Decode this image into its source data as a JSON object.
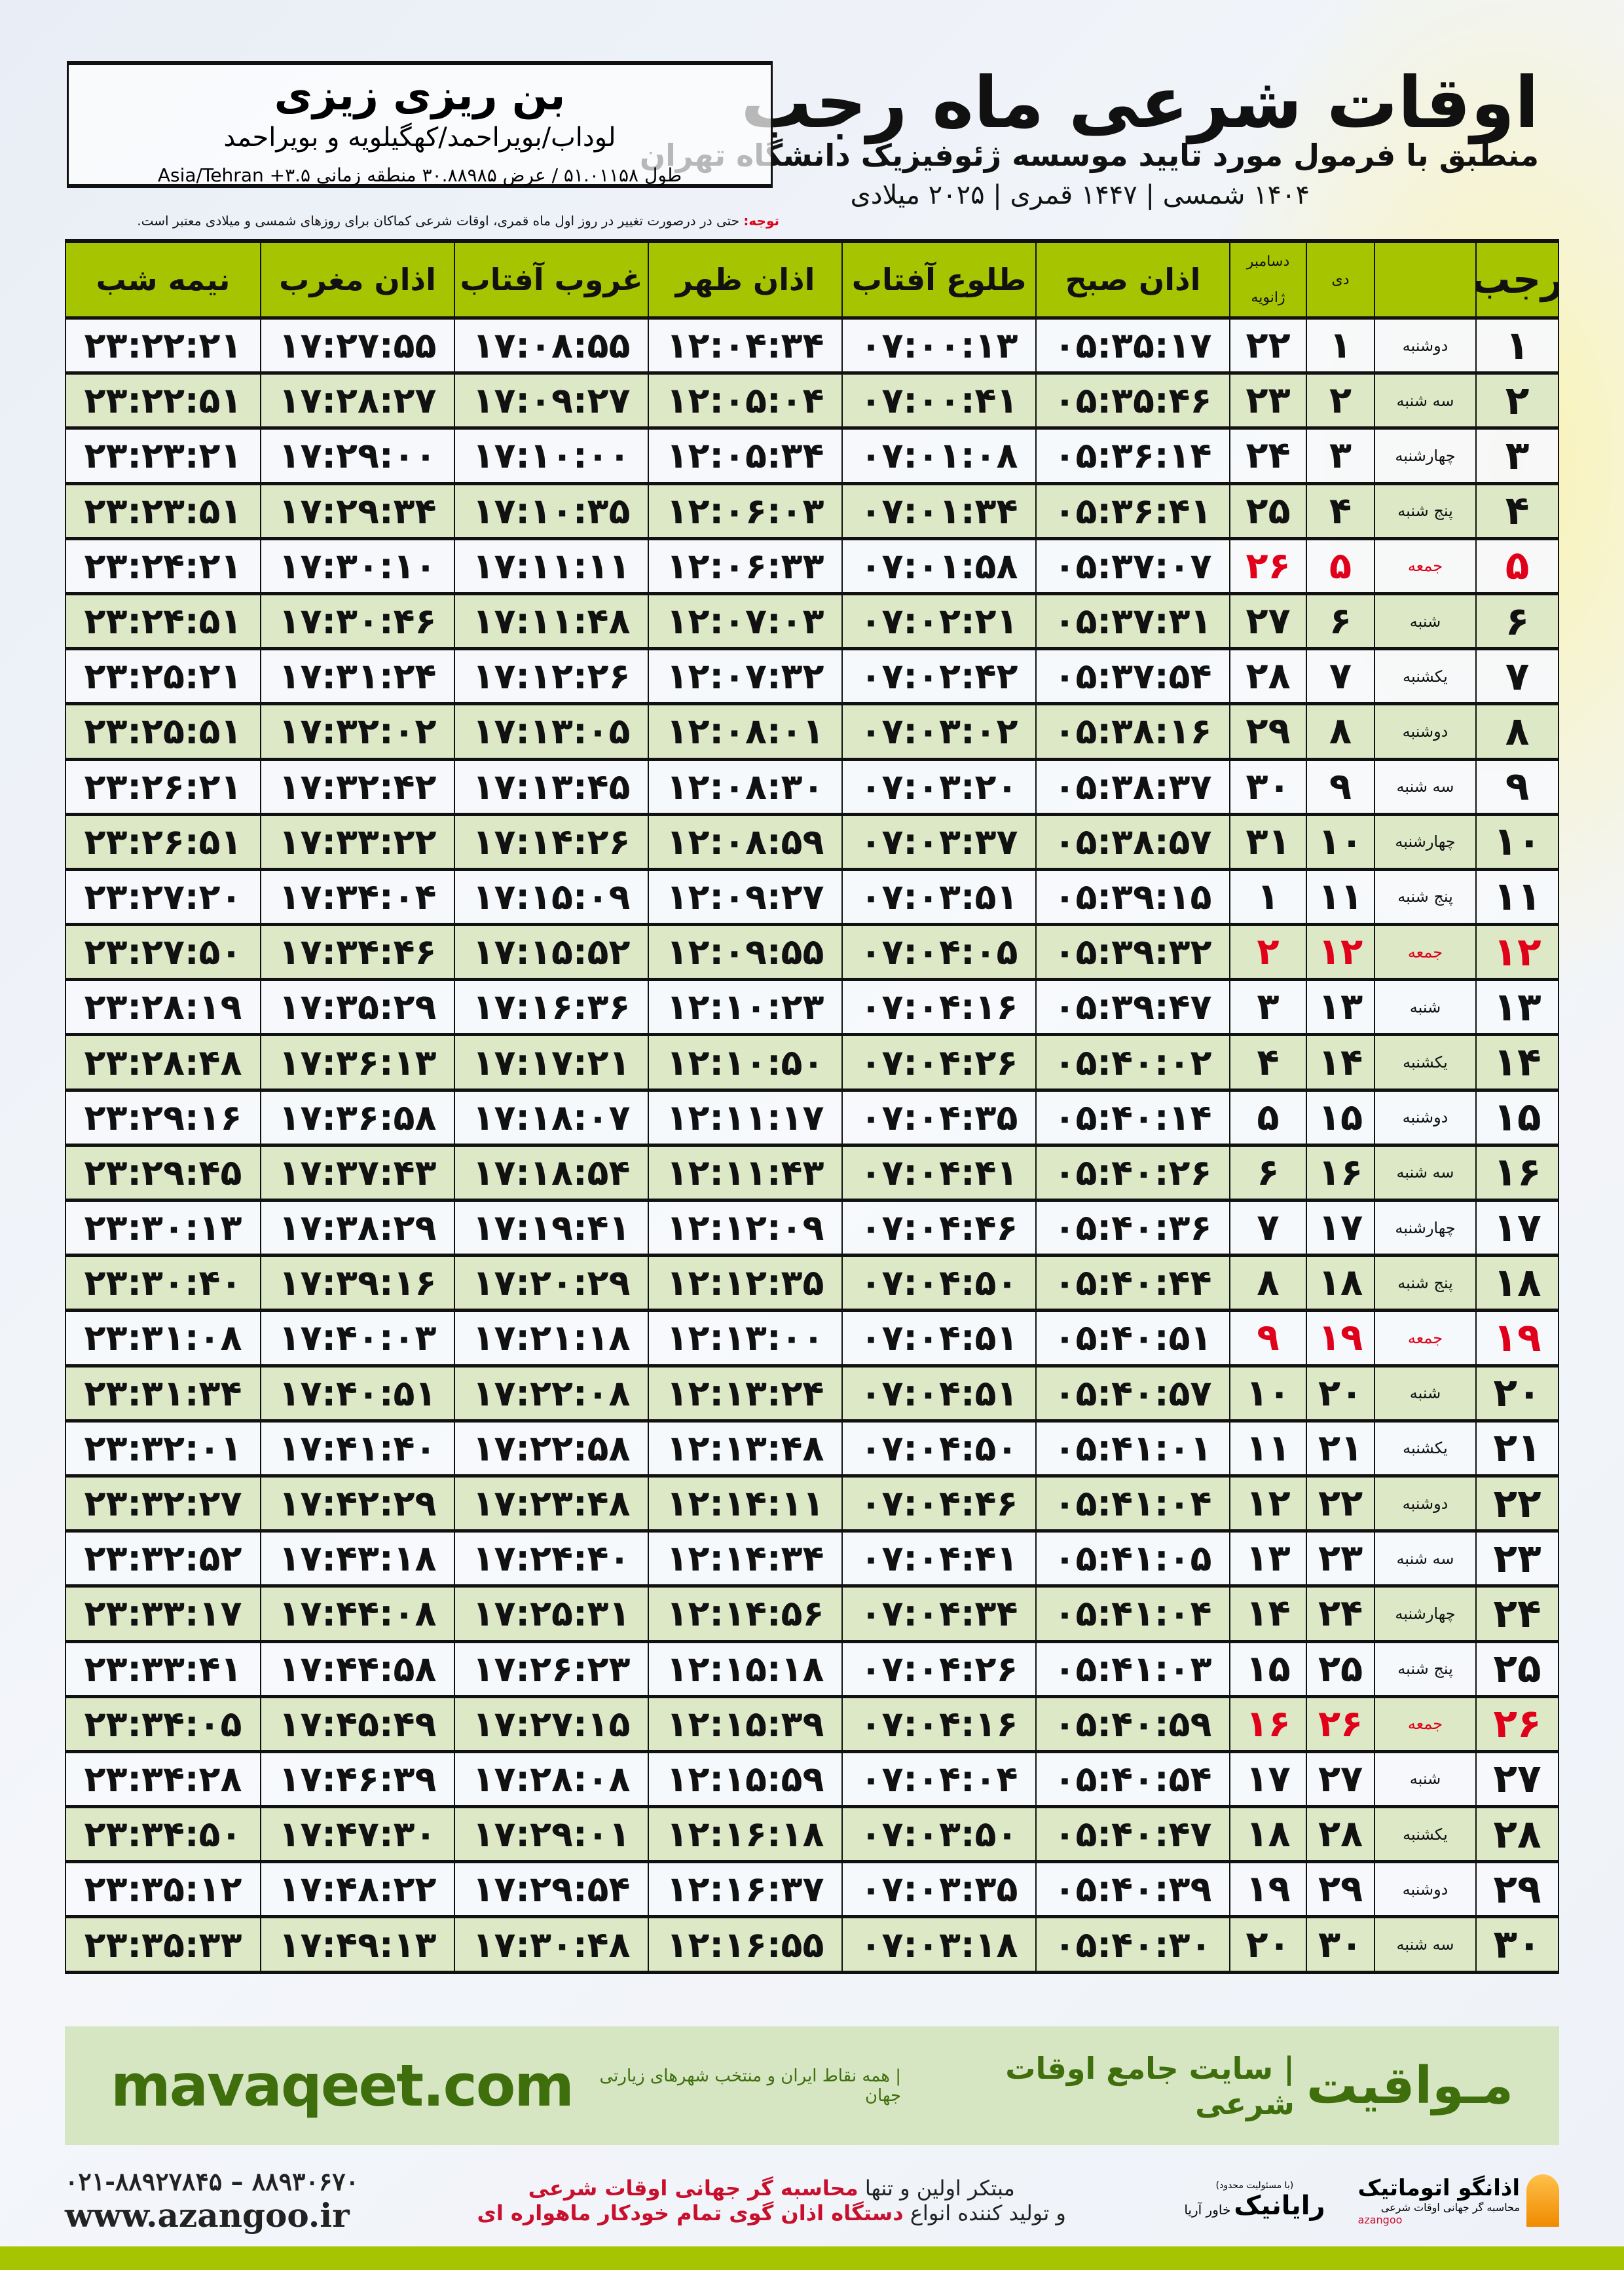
{
  "header": {
    "title": "اوقات شرعی ماه رجب",
    "subtitle": "منطبق با فرمول مورد تایید موسسه ژئوفیزیک دانشگاه تهران",
    "dateline": "۱۴۰۴ شمسی | ۱۴۴۷ قمری | ۲۰۲۵ میلادی"
  },
  "location": {
    "name": "بن ریزی زیزی",
    "path": "لوداب/بویراحمد/کهگیلویه و بویراحمد",
    "coords": "طول ۵۱.۰۱۱۵۸ / عرض ۳۰.۸۸۹۸۵ منطقه زمانی ۳.۵+ Asia/Tehran"
  },
  "note": {
    "label": "توجه:",
    "text": " حتی در درصورت تغییر در روز اول ماه قمری، اوقات شرعی کماکان برای روزهای شمسی و میلادی معتبر است."
  },
  "columns": {
    "rajab": "رجب",
    "dey": "دی",
    "greg_top": "دسامبر",
    "greg_bottom": "ژانویه",
    "fajr": "اذان صبح",
    "sunrise": "طلوع آفتاب",
    "dhuhr": "اذان ظهر",
    "sunset": "غروب آفتاب",
    "maghrib": "اذان مغرب",
    "midnight": "نیمه شب"
  },
  "colors": {
    "header_green": "#a6c400",
    "row_green": "#dce8c6",
    "friday_red": "#e0001a",
    "brand_green": "#3f6e0c"
  },
  "rows": [
    [
      "۱",
      "دوشنبه",
      "۱",
      "۲۲",
      "۰۵:۳۵:۱۷",
      "۰۷:۰۰:۱۳",
      "۱۲:۰۴:۳۴",
      "۱۷:۰۸:۵۵",
      "۱۷:۲۷:۵۵",
      "۲۳:۲۲:۲۱"
    ],
    [
      "۲",
      "سه شنبه",
      "۲",
      "۲۳",
      "۰۵:۳۵:۴۶",
      "۰۷:۰۰:۴۱",
      "۱۲:۰۵:۰۴",
      "۱۷:۰۹:۲۷",
      "۱۷:۲۸:۲۷",
      "۲۳:۲۲:۵۱"
    ],
    [
      "۳",
      "چهارشنبه",
      "۳",
      "۲۴",
      "۰۵:۳۶:۱۴",
      "۰۷:۰۱:۰۸",
      "۱۲:۰۵:۳۴",
      "۱۷:۱۰:۰۰",
      "۱۷:۲۹:۰۰",
      "۲۳:۲۳:۲۱"
    ],
    [
      "۴",
      "پنج شنبه",
      "۴",
      "۲۵",
      "۰۵:۳۶:۴۱",
      "۰۷:۰۱:۳۴",
      "۱۲:۰۶:۰۳",
      "۱۷:۱۰:۳۵",
      "۱۷:۲۹:۳۴",
      "۲۳:۲۳:۵۱"
    ],
    [
      "۵",
      "جمعه",
      "۵",
      "۲۶",
      "۰۵:۳۷:۰۷",
      "۰۷:۰۱:۵۸",
      "۱۲:۰۶:۳۳",
      "۱۷:۱۱:۱۱",
      "۱۷:۳۰:۱۰",
      "۲۳:۲۴:۲۱"
    ],
    [
      "۶",
      "شنبه",
      "۶",
      "۲۷",
      "۰۵:۳۷:۳۱",
      "۰۷:۰۲:۲۱",
      "۱۲:۰۷:۰۳",
      "۱۷:۱۱:۴۸",
      "۱۷:۳۰:۴۶",
      "۲۳:۲۴:۵۱"
    ],
    [
      "۷",
      "یکشنبه",
      "۷",
      "۲۸",
      "۰۵:۳۷:۵۴",
      "۰۷:۰۲:۴۲",
      "۱۲:۰۷:۳۲",
      "۱۷:۱۲:۲۶",
      "۱۷:۳۱:۲۴",
      "۲۳:۲۵:۲۱"
    ],
    [
      "۸",
      "دوشنبه",
      "۸",
      "۲۹",
      "۰۵:۳۸:۱۶",
      "۰۷:۰۳:۰۲",
      "۱۲:۰۸:۰۱",
      "۱۷:۱۳:۰۵",
      "۱۷:۳۲:۰۲",
      "۲۳:۲۵:۵۱"
    ],
    [
      "۹",
      "سه شنبه",
      "۹",
      "۳۰",
      "۰۵:۳۸:۳۷",
      "۰۷:۰۳:۲۰",
      "۱۲:۰۸:۳۰",
      "۱۷:۱۳:۴۵",
      "۱۷:۳۲:۴۲",
      "۲۳:۲۶:۲۱"
    ],
    [
      "۱۰",
      "چهارشنبه",
      "۱۰",
      "۳۱",
      "۰۵:۳۸:۵۷",
      "۰۷:۰۳:۳۷",
      "۱۲:۰۸:۵۹",
      "۱۷:۱۴:۲۶",
      "۱۷:۳۳:۲۲",
      "۲۳:۲۶:۵۱"
    ],
    [
      "۱۱",
      "پنج شنبه",
      "۱۱",
      "۱",
      "۰۵:۳۹:۱۵",
      "۰۷:۰۳:۵۱",
      "۱۲:۰۹:۲۷",
      "۱۷:۱۵:۰۹",
      "۱۷:۳۴:۰۴",
      "۲۳:۲۷:۲۰"
    ],
    [
      "۱۲",
      "جمعه",
      "۱۲",
      "۲",
      "۰۵:۳۹:۳۲",
      "۰۷:۰۴:۰۵",
      "۱۲:۰۹:۵۵",
      "۱۷:۱۵:۵۲",
      "۱۷:۳۴:۴۶",
      "۲۳:۲۷:۵۰"
    ],
    [
      "۱۳",
      "شنبه",
      "۱۳",
      "۳",
      "۰۵:۳۹:۴۷",
      "۰۷:۰۴:۱۶",
      "۱۲:۱۰:۲۳",
      "۱۷:۱۶:۳۶",
      "۱۷:۳۵:۲۹",
      "۲۳:۲۸:۱۹"
    ],
    [
      "۱۴",
      "یکشنبه",
      "۱۴",
      "۴",
      "۰۵:۴۰:۰۲",
      "۰۷:۰۴:۲۶",
      "۱۲:۱۰:۵۰",
      "۱۷:۱۷:۲۱",
      "۱۷:۳۶:۱۳",
      "۲۳:۲۸:۴۸"
    ],
    [
      "۱۵",
      "دوشنبه",
      "۱۵",
      "۵",
      "۰۵:۴۰:۱۴",
      "۰۷:۰۴:۳۵",
      "۱۲:۱۱:۱۷",
      "۱۷:۱۸:۰۷",
      "۱۷:۳۶:۵۸",
      "۲۳:۲۹:۱۶"
    ],
    [
      "۱۶",
      "سه شنبه",
      "۱۶",
      "۶",
      "۰۵:۴۰:۲۶",
      "۰۷:۰۴:۴۱",
      "۱۲:۱۱:۴۳",
      "۱۷:۱۸:۵۴",
      "۱۷:۳۷:۴۳",
      "۲۳:۲۹:۴۵"
    ],
    [
      "۱۷",
      "چهارشنبه",
      "۱۷",
      "۷",
      "۰۵:۴۰:۳۶",
      "۰۷:۰۴:۴۶",
      "۱۲:۱۲:۰۹",
      "۱۷:۱۹:۴۱",
      "۱۷:۳۸:۲۹",
      "۲۳:۳۰:۱۳"
    ],
    [
      "۱۸",
      "پنج شنبه",
      "۱۸",
      "۸",
      "۰۵:۴۰:۴۴",
      "۰۷:۰۴:۵۰",
      "۱۲:۱۲:۳۵",
      "۱۷:۲۰:۲۹",
      "۱۷:۳۹:۱۶",
      "۲۳:۳۰:۴۰"
    ],
    [
      "۱۹",
      "جمعه",
      "۱۹",
      "۹",
      "۰۵:۴۰:۵۱",
      "۰۷:۰۴:۵۱",
      "۱۲:۱۳:۰۰",
      "۱۷:۲۱:۱۸",
      "۱۷:۴۰:۰۳",
      "۲۳:۳۱:۰۸"
    ],
    [
      "۲۰",
      "شنبه",
      "۲۰",
      "۱۰",
      "۰۵:۴۰:۵۷",
      "۰۷:۰۴:۵۱",
      "۱۲:۱۳:۲۴",
      "۱۷:۲۲:۰۸",
      "۱۷:۴۰:۵۱",
      "۲۳:۳۱:۳۴"
    ],
    [
      "۲۱",
      "یکشنبه",
      "۲۱",
      "۱۱",
      "۰۵:۴۱:۰۱",
      "۰۷:۰۴:۵۰",
      "۱۲:۱۳:۴۸",
      "۱۷:۲۲:۵۸",
      "۱۷:۴۱:۴۰",
      "۲۳:۳۲:۰۱"
    ],
    [
      "۲۲",
      "دوشنبه",
      "۲۲",
      "۱۲",
      "۰۵:۴۱:۰۴",
      "۰۷:۰۴:۴۶",
      "۱۲:۱۴:۱۱",
      "۱۷:۲۳:۴۸",
      "۱۷:۴۲:۲۹",
      "۲۳:۳۲:۲۷"
    ],
    [
      "۲۳",
      "سه شنبه",
      "۲۳",
      "۱۳",
      "۰۵:۴۱:۰۵",
      "۰۷:۰۴:۴۱",
      "۱۲:۱۴:۳۴",
      "۱۷:۲۴:۴۰",
      "۱۷:۴۳:۱۸",
      "۲۳:۳۲:۵۲"
    ],
    [
      "۲۴",
      "چهارشنبه",
      "۲۴",
      "۱۴",
      "۰۵:۴۱:۰۴",
      "۰۷:۰۴:۳۴",
      "۱۲:۱۴:۵۶",
      "۱۷:۲۵:۳۱",
      "۱۷:۴۴:۰۸",
      "۲۳:۳۳:۱۷"
    ],
    [
      "۲۵",
      "پنج شنبه",
      "۲۵",
      "۱۵",
      "۰۵:۴۱:۰۳",
      "۰۷:۰۴:۲۶",
      "۱۲:۱۵:۱۸",
      "۱۷:۲۶:۲۳",
      "۱۷:۴۴:۵۸",
      "۲۳:۳۳:۴۱"
    ],
    [
      "۲۶",
      "جمعه",
      "۲۶",
      "۱۶",
      "۰۵:۴۰:۵۹",
      "۰۷:۰۴:۱۶",
      "۱۲:۱۵:۳۹",
      "۱۷:۲۷:۱۵",
      "۱۷:۴۵:۴۹",
      "۲۳:۳۴:۰۵"
    ],
    [
      "۲۷",
      "شنبه",
      "۲۷",
      "۱۷",
      "۰۵:۴۰:۵۴",
      "۰۷:۰۴:۰۴",
      "۱۲:۱۵:۵۹",
      "۱۷:۲۸:۰۸",
      "۱۷:۴۶:۳۹",
      "۲۳:۳۴:۲۸"
    ],
    [
      "۲۸",
      "یکشنبه",
      "۲۸",
      "۱۸",
      "۰۵:۴۰:۴۷",
      "۰۷:۰۳:۵۰",
      "۱۲:۱۶:۱۸",
      "۱۷:۲۹:۰۱",
      "۱۷:۴۷:۳۰",
      "۲۳:۳۴:۵۰"
    ],
    [
      "۲۹",
      "دوشنبه",
      "۲۹",
      "۱۹",
      "۰۵:۴۰:۳۹",
      "۰۷:۰۳:۳۵",
      "۱۲:۱۶:۳۷",
      "۱۷:۲۹:۵۴",
      "۱۷:۴۸:۲۲",
      "۲۳:۳۵:۱۲"
    ],
    [
      "۳۰",
      "سه شنبه",
      "۳۰",
      "۲۰",
      "۰۵:۴۰:۳۰",
      "۰۷:۰۳:۱۸",
      "۱۲:۱۶:۵۵",
      "۱۷:۳۰:۴۸",
      "۱۷:۴۹:۱۳",
      "۲۳:۳۵:۳۳"
    ]
  ],
  "banner": {
    "brand": "مـواقیت",
    "slogan": "| سایت جامع اوقات شرعی",
    "slogan_sub": "| همه نقاط ایران و منتخب شهرهای زیارتی جهان",
    "site": "mavaqeet.com"
  },
  "footer": {
    "phone": "۰۲۱-۸۸۹۲۷۸۴۵ – ۸۸۹۳۰۶۷۰",
    "web": "www.azangoo.ir",
    "promo_1a": "مبتکر اولین و تنها ",
    "promo_1b": "محاسبه گر جهانی اوقات شرعی",
    "promo_2a": "و تولید کننده انواع ",
    "promo_2b": "دستگاه اذان گوی تمام خودکار ماهواره ای",
    "rayanik": "رایانیک",
    "rayanik_sub": "خاور آریا",
    "rayanik_note": "(با مسئولیت محدود)",
    "az_name": "اذانگو اتوماتیک",
    "az_sub": "محاسبه گر جهانی اوقات شرعی",
    "az_latin": "azangoo"
  }
}
